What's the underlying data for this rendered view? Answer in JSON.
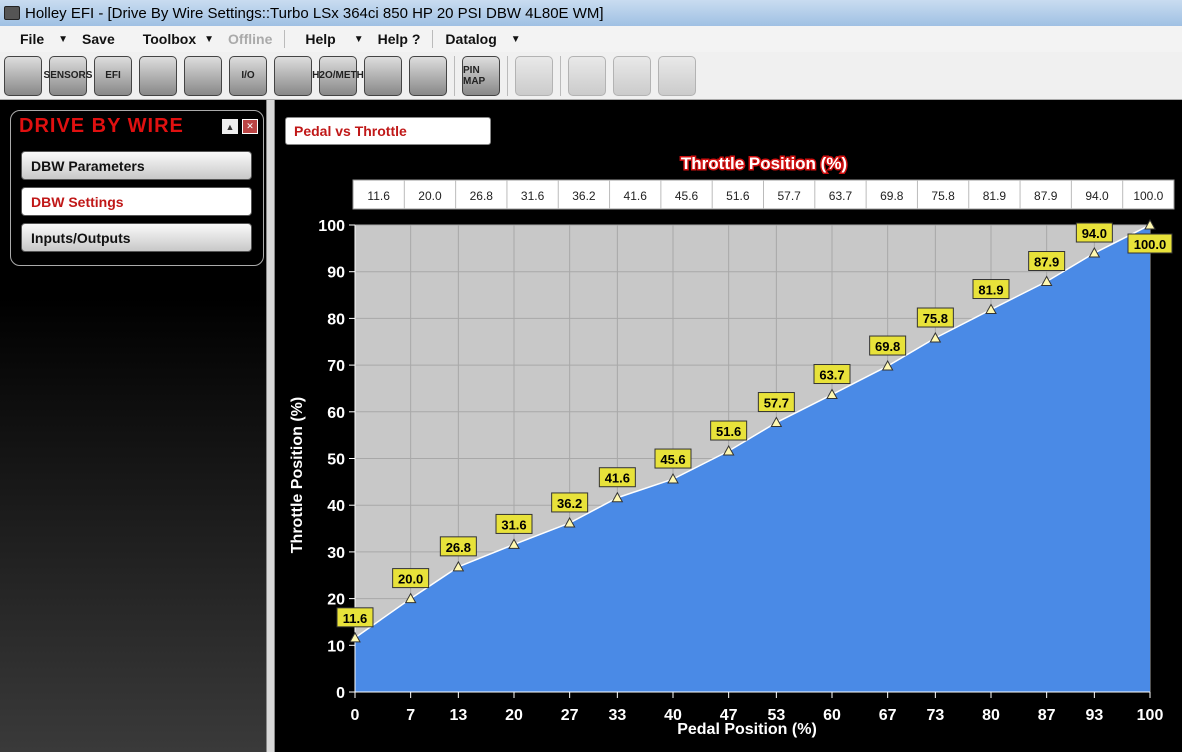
{
  "window": {
    "title": "Holley EFI - [Drive By Wire Settings::Turbo LSx 364ci 850 HP 20 PSI DBW 4L80E WM]"
  },
  "menu": {
    "file": "File",
    "save": "Save",
    "toolbox": "Toolbox",
    "offline": "Offline",
    "help": "Help",
    "help_q": "Help ?",
    "datalog": "Datalog"
  },
  "toolbar": [
    {
      "icon": "injector-icon"
    },
    {
      "icon": "sensors-icon",
      "label": "SENSORS"
    },
    {
      "icon": "efi-ecu-icon",
      "label": "EFI"
    },
    {
      "icon": "gauge-icon"
    },
    {
      "icon": "spark-plug-icon"
    },
    {
      "icon": "io-icon",
      "label": "I/O"
    },
    {
      "icon": "cam-icon"
    },
    {
      "icon": "water-meth-icon",
      "label": "H2O/METH"
    },
    {
      "icon": "shifter-icon"
    },
    {
      "icon": "pedal-icon"
    },
    {
      "icon": "pin-map-icon",
      "label": "PIN MAP"
    },
    {
      "icon": "sync-icon"
    },
    {
      "icon": "clipboard-icon"
    },
    {
      "icon": "dash-gauges-icon"
    },
    {
      "icon": "waveform-icon"
    }
  ],
  "sidebar": {
    "title": "DRIVE BY WIRE",
    "items": [
      {
        "label": "DBW Parameters",
        "active": false
      },
      {
        "label": "DBW Settings",
        "active": true
      },
      {
        "label": "Inputs/Outputs",
        "active": false
      }
    ]
  },
  "main": {
    "chart_selector": "Pedal vs Throttle"
  },
  "colors": {
    "fill": "#4a8ae6",
    "plot_bg": "#c8c8c8",
    "label_bg": "#e8e23a",
    "accent": "#c01818"
  },
  "chart_data": {
    "type": "area",
    "title": "Throttle Position (%)",
    "xlabel": "Pedal Position (%)",
    "ylabel": "Throttle Position (%)",
    "x": [
      0,
      7,
      13,
      20,
      27,
      33,
      40,
      47,
      53,
      60,
      67,
      73,
      80,
      87,
      93,
      100
    ],
    "y": [
      11.6,
      20.0,
      26.8,
      31.6,
      36.2,
      41.6,
      45.6,
      51.6,
      57.7,
      63.7,
      69.8,
      75.8,
      81.9,
      87.9,
      94.0,
      100.0
    ],
    "table_values": [
      "11.6",
      "20.0",
      "26.8",
      "31.6",
      "36.2",
      "41.6",
      "45.6",
      "51.6",
      "57.7",
      "63.7",
      "69.8",
      "75.8",
      "81.9",
      "87.9",
      "94.0",
      "100.0"
    ],
    "yticks": [
      0,
      10,
      20,
      30,
      40,
      50,
      60,
      70,
      80,
      90,
      100
    ],
    "xlim": [
      0,
      100
    ],
    "ylim": [
      0,
      100
    ],
    "grid": true
  }
}
